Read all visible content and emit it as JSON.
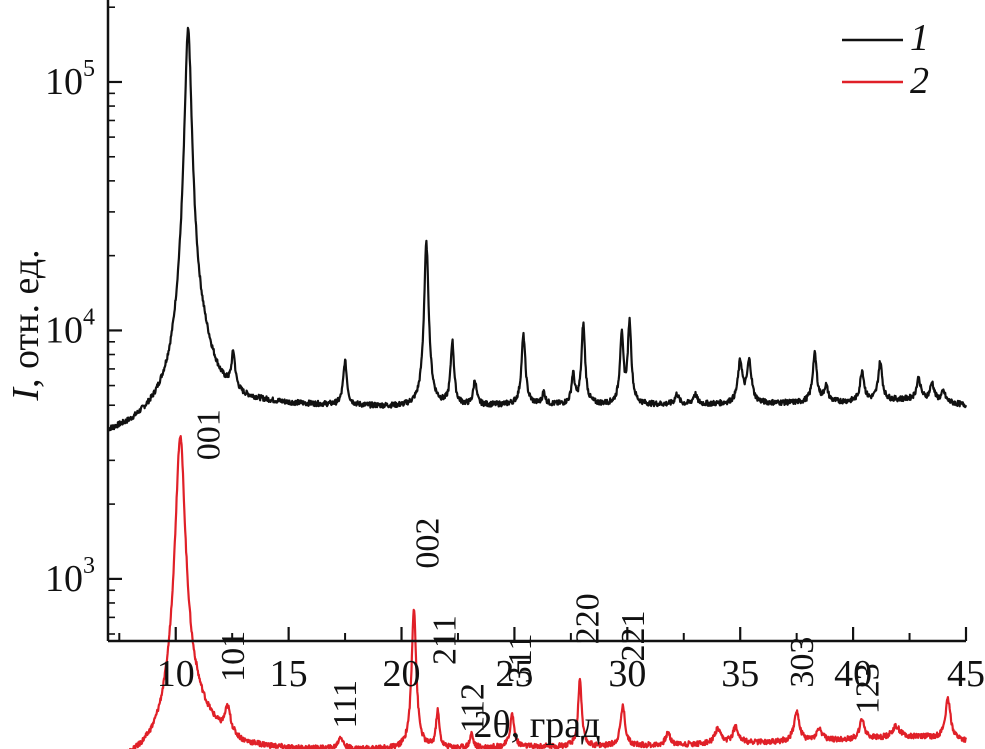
{
  "chart_data": {
    "type": "line",
    "title": "",
    "xlabel": "2θ, град",
    "ylabel_italic": "I",
    "ylabel_rest": ", отн. ед.",
    "xlim": [
      7,
      45
    ],
    "ylim_log10": [
      2.75,
      5.33
    ],
    "y_scale": "log",
    "x_ticks": [
      10,
      15,
      20,
      25,
      30,
      35,
      40,
      45
    ],
    "x_tick_labels": [
      "10",
      "15",
      "20",
      "25",
      "30",
      "35",
      "40",
      "45"
    ],
    "y_ticks": [
      {
        "base": "10",
        "exp": "3",
        "value": 1000
      },
      {
        "base": "10",
        "exp": "4",
        "value": 10000
      },
      {
        "base": "10",
        "exp": "5",
        "value": 100000
      }
    ],
    "legend": {
      "position": "top-right",
      "entries": [
        {
          "label": "1",
          "color": "#111111"
        },
        {
          "label": "2",
          "color": "#e02028"
        }
      ]
    },
    "series": [
      {
        "name": "1",
        "color": "#111111",
        "baseline": [
          [
            7,
            3800
          ],
          [
            8,
            4000
          ],
          [
            9,
            4400
          ],
          [
            9.8,
            4900
          ],
          [
            11,
            6300
          ],
          [
            12,
            5400
          ],
          [
            13,
            5100
          ],
          [
            15,
            5000
          ],
          [
            20,
            4900
          ],
          [
            25,
            5000
          ],
          [
            30,
            5000
          ],
          [
            35,
            5050
          ],
          [
            40,
            5150
          ],
          [
            43,
            5300
          ],
          [
            45,
            5000
          ]
        ],
        "peaks": [
          {
            "x": 10.55,
            "h": 156000,
            "w": 0.13
          },
          {
            "x": 11.2,
            "h": 1200,
            "w": 0.4
          },
          {
            "x": 12.55,
            "h": 2300,
            "w": 0.09
          },
          {
            "x": 17.5,
            "h": 2500,
            "w": 0.09
          },
          {
            "x": 21.1,
            "h": 17500,
            "w": 0.09
          },
          {
            "x": 22.25,
            "h": 4000,
            "w": 0.08
          },
          {
            "x": 23.25,
            "h": 1300,
            "w": 0.08
          },
          {
            "x": 25.4,
            "h": 4500,
            "w": 0.09
          },
          {
            "x": 26.3,
            "h": 600,
            "w": 0.08
          },
          {
            "x": 27.6,
            "h": 1600,
            "w": 0.08
          },
          {
            "x": 28.05,
            "h": 5600,
            "w": 0.08
          },
          {
            "x": 29.75,
            "h": 4600,
            "w": 0.08
          },
          {
            "x": 30.1,
            "h": 5800,
            "w": 0.08
          },
          {
            "x": 32.2,
            "h": 500,
            "w": 0.1
          },
          {
            "x": 33.0,
            "h": 500,
            "w": 0.1
          },
          {
            "x": 35.0,
            "h": 2400,
            "w": 0.11
          },
          {
            "x": 35.4,
            "h": 2400,
            "w": 0.11
          },
          {
            "x": 38.3,
            "h": 2900,
            "w": 0.1
          },
          {
            "x": 38.8,
            "h": 800,
            "w": 0.1
          },
          {
            "x": 40.4,
            "h": 1700,
            "w": 0.1
          },
          {
            "x": 41.2,
            "h": 2200,
            "w": 0.1
          },
          {
            "x": 42.9,
            "h": 1100,
            "w": 0.1
          },
          {
            "x": 43.5,
            "h": 900,
            "w": 0.1
          },
          {
            "x": 44.0,
            "h": 500,
            "w": 0.1
          }
        ]
      },
      {
        "name": "2",
        "color": "#e02028",
        "baseline": [
          [
            7,
            175
          ],
          [
            8,
            182
          ],
          [
            9,
            192
          ],
          [
            9.7,
            205
          ],
          [
            10.9,
            265
          ],
          [
            12,
            225
          ],
          [
            13,
            210
          ],
          [
            15,
            205
          ],
          [
            20,
            205
          ],
          [
            25,
            210
          ],
          [
            30,
            212
          ],
          [
            35,
            218
          ],
          [
            40,
            225
          ],
          [
            43,
            232
          ],
          [
            45,
            222
          ]
        ],
        "peaks": [
          {
            "x": 10.2,
            "h": 3550,
            "w": 0.17
          },
          {
            "x": 12.3,
            "h": 65,
            "w": 0.15
          },
          {
            "x": 17.3,
            "h": 25,
            "w": 0.12
          },
          {
            "x": 20.55,
            "h": 560,
            "w": 0.09
          },
          {
            "x": 21.6,
            "h": 85,
            "w": 0.08
          },
          {
            "x": 23.1,
            "h": 30,
            "w": 0.08
          },
          {
            "x": 24.9,
            "h": 75,
            "w": 0.1
          },
          {
            "x": 27.9,
            "h": 185,
            "w": 0.08
          },
          {
            "x": 29.8,
            "h": 95,
            "w": 0.11
          },
          {
            "x": 31.8,
            "h": 25,
            "w": 0.12
          },
          {
            "x": 34.0,
            "h": 30,
            "w": 0.15
          },
          {
            "x": 34.8,
            "h": 35,
            "w": 0.15
          },
          {
            "x": 37.5,
            "h": 70,
            "w": 0.13
          },
          {
            "x": 38.5,
            "h": 25,
            "w": 0.15
          },
          {
            "x": 40.4,
            "h": 45,
            "w": 0.13
          },
          {
            "x": 41.9,
            "h": 25,
            "w": 0.2
          },
          {
            "x": 44.2,
            "h": 100,
            "w": 0.13
          }
        ]
      }
    ],
    "annotations": [
      {
        "text": "001",
        "x": 11.4,
        "y": 3000
      },
      {
        "text": "101",
        "x": 12.5,
        "y": 385
      },
      {
        "text": "111",
        "x": 17.45,
        "y": 250
      },
      {
        "text": "002",
        "x": 21.1,
        "y": 1100
      },
      {
        "text": "211",
        "x": 21.85,
        "y": 450
      },
      {
        "text": "112",
        "x": 23.1,
        "y": 240
      },
      {
        "text": "311",
        "x": 25.2,
        "y": 380
      },
      {
        "text": "220",
        "x": 28.2,
        "y": 545
      },
      {
        "text": "221",
        "x": 30.2,
        "y": 465
      },
      {
        "text": "303",
        "x": 37.7,
        "y": 365
      },
      {
        "text": "123",
        "x": 40.6,
        "y": 285
      }
    ]
  }
}
